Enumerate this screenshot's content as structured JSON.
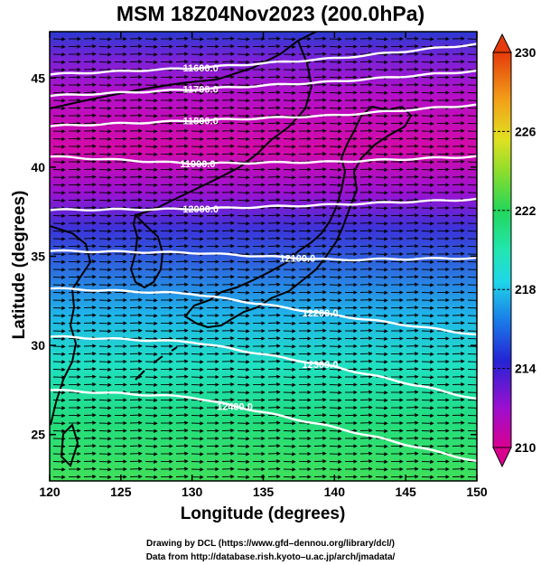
{
  "title": "MSM 18Z04Nov2023 (200.0hPa)",
  "xlabel": "Longitude (degrees)",
  "ylabel": "Latitude  (degrees)",
  "credits": [
    "Drawing by DCL (https://www.gfd–dennou.org/library/dcl/)",
    "Data from http://database.rish.kyoto–u.ac.jp/arch/jmadata/"
  ],
  "map_data": {
    "type": "contour+colormap+vectors",
    "xlim": [
      120,
      150
    ],
    "ylim": [
      22.4,
      47.6
    ],
    "x_ticks": [
      "120",
      "125",
      "130",
      "135",
      "140",
      "145",
      "150"
    ],
    "y_ticks": [
      "25",
      "30",
      "35",
      "40",
      "45"
    ],
    "colorbar": {
      "min": 210,
      "max": 230,
      "tick_labels": [
        "230",
        "226",
        "222",
        "218",
        "214",
        "210"
      ],
      "stops": [
        "#d9008f",
        "#9d0fd0",
        "#3030d8",
        "#1da6f2",
        "#22e6c8",
        "#23d65a",
        "#8edd2b",
        "#e0e021",
        "#f2b418",
        "#f07a12",
        "#e53a0c"
      ]
    },
    "contours": [
      {
        "label": "11600.0",
        "lat_at": [
          [
            120,
            45.2
          ],
          [
            130,
            45.55
          ],
          [
            140,
            46.1
          ],
          [
            150,
            46.9
          ]
        ],
        "label_lon": 130.6
      },
      {
        "label": "11700.0",
        "lat_at": [
          [
            120,
            44.0
          ],
          [
            130,
            44.35
          ],
          [
            140,
            44.8
          ],
          [
            150,
            45.4
          ]
        ],
        "label_lon": 130.6
      },
      {
        "label": "11800.0",
        "lat_at": [
          [
            120,
            42.3
          ],
          [
            130,
            42.6
          ],
          [
            140,
            42.9
          ],
          [
            150,
            43.5
          ]
        ],
        "label_lon": 130.6
      },
      {
        "label": "11900.0",
        "lat_at": [
          [
            120,
            40.6
          ],
          [
            130,
            40.2
          ],
          [
            140,
            40.3
          ],
          [
            150,
            40.6
          ]
        ],
        "label_lon": 130.4
      },
      {
        "label": "12000.0",
        "lat_at": [
          [
            120,
            37.6
          ],
          [
            130,
            37.65
          ],
          [
            140,
            37.9
          ],
          [
            150,
            38.2
          ]
        ],
        "label_lon": 130.6
      },
      {
        "label": "12100.0",
        "lat_at": [
          [
            120,
            35.3
          ],
          [
            130,
            35.2
          ],
          [
            140,
            34.8
          ],
          [
            150,
            34.9
          ]
        ],
        "label_lon": 137.4
      },
      {
        "label": "12200.0",
        "lat_at": [
          [
            120,
            33.2
          ],
          [
            130,
            32.9
          ],
          [
            140,
            31.7
          ],
          [
            150,
            30.6
          ]
        ],
        "label_lon": 139.0
      },
      {
        "label": "12300.0",
        "lat_at": [
          [
            120,
            30.5
          ],
          [
            130,
            30.2
          ],
          [
            140,
            28.8
          ],
          [
            150,
            27.0
          ]
        ],
        "label_lon": 139.0
      },
      {
        "label": "12400.0",
        "lat_at": [
          [
            120,
            27.5
          ],
          [
            130,
            27.1
          ],
          [
            140,
            25.4
          ],
          [
            150,
            23.5
          ]
        ],
        "label_lon": 133.0
      }
    ],
    "temperature_field": [
      {
        "lat": 47.6,
        "value": 213
      },
      {
        "lat": 45.0,
        "value": 212
      },
      {
        "lat": 43.5,
        "value": 210.5
      },
      {
        "lat": 40.5,
        "value": 210.8
      },
      {
        "lat": 39.0,
        "value": 212.5
      },
      {
        "lat": 37.0,
        "value": 214.8
      },
      {
        "lat": 35.0,
        "value": 216.5
      },
      {
        "lat": 32.0,
        "value": 218.5
      },
      {
        "lat": 28.0,
        "value": 221
      },
      {
        "lat": 22.4,
        "value": 222.5
      }
    ],
    "wind_direction": "westerly",
    "coastlines": "Japan, Korea, eastern China, Russian Far East"
  }
}
